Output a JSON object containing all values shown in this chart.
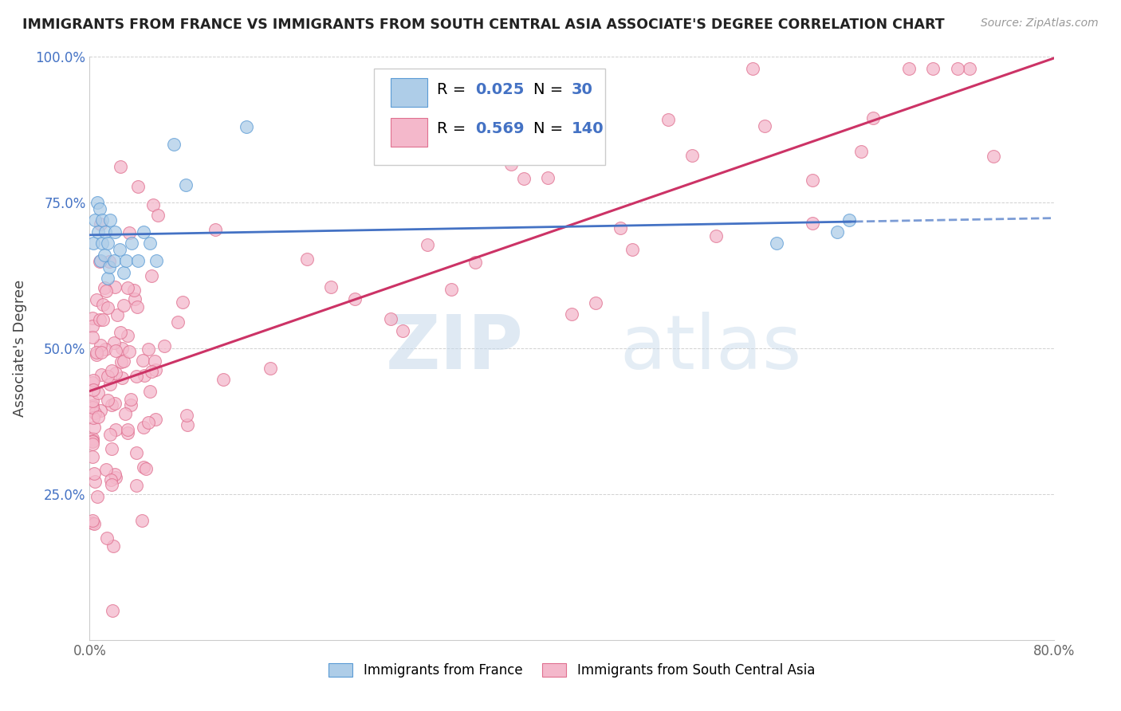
{
  "title": "IMMIGRANTS FROM FRANCE VS IMMIGRANTS FROM SOUTH CENTRAL ASIA ASSOCIATE'S DEGREE CORRELATION CHART",
  "source_text": "Source: ZipAtlas.com",
  "ylabel": "Associate's Degree",
  "xlim": [
    0.0,
    0.8
  ],
  "ylim": [
    0.0,
    1.0
  ],
  "legend_labels": [
    "Immigrants from France",
    "Immigrants from South Central Asia"
  ],
  "france_R": 0.025,
  "france_N": 30,
  "sca_R": 0.569,
  "sca_N": 140,
  "france_color": "#aecde8",
  "france_edge_color": "#5b9bd5",
  "sca_color": "#f4b8cb",
  "sca_edge_color": "#e07090",
  "france_line_color": "#4472c4",
  "sca_line_color": "#cc3366",
  "watermark_zip": "ZIP",
  "watermark_atlas": "atlas",
  "background_color": "#ffffff",
  "grid_color": "#cccccc",
  "title_color": "#222222",
  "source_color": "#999999",
  "ylabel_color": "#444444",
  "tick_color": "#4472c4",
  "xtick_color": "#666666"
}
